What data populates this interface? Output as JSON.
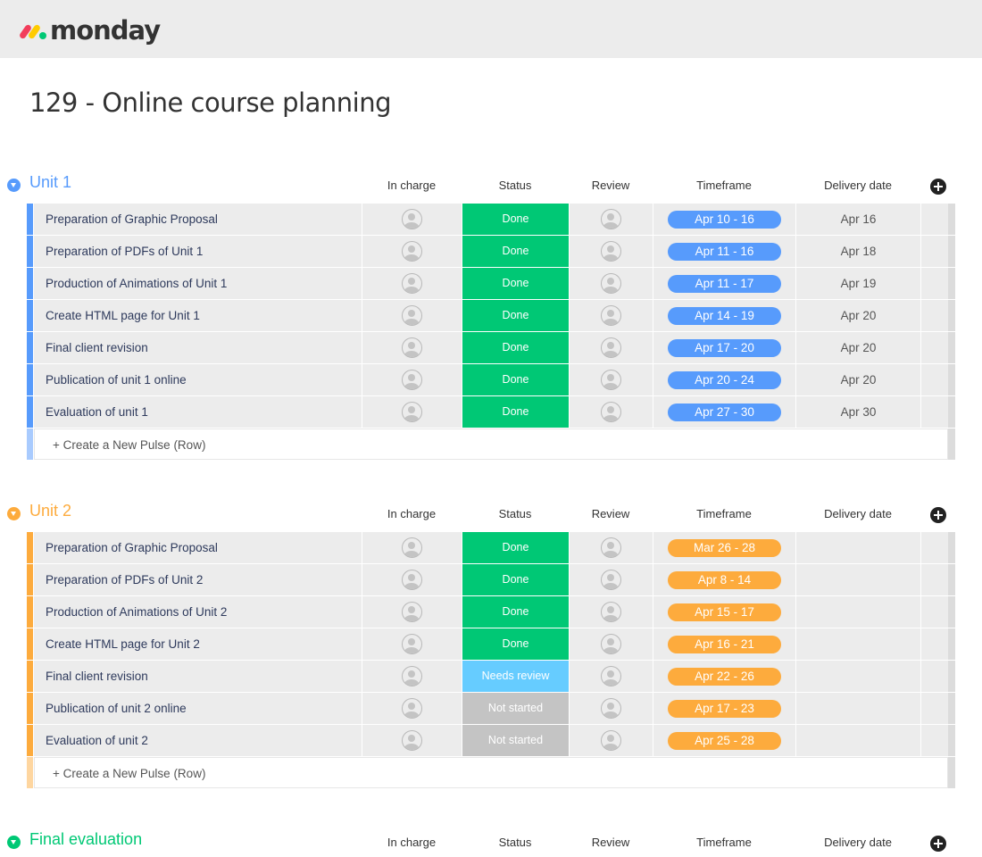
{
  "app": {
    "logo_text": "monday"
  },
  "board": {
    "title": "129 - Online course planning"
  },
  "columns": [
    "In charge",
    "Status",
    "Review",
    "Timeframe",
    "Delivery date"
  ],
  "colors": {
    "done": "#00c875",
    "needs_review": "#66ccff",
    "not_started": "#c4c4c4",
    "unit1": "#579bfc",
    "unit1_light": "#a9cbfe",
    "unit2": "#fdab3d",
    "unit2_light": "#fed6a0",
    "final": "#00c875"
  },
  "new_row_label": "+ Create a New Pulse (Row)",
  "groups": [
    {
      "name": "Unit 1",
      "color": "#579bfc",
      "light": "#a9cbfe",
      "rows": [
        {
          "name": "Preparation of Graphic Proposal",
          "status": "Done",
          "status_color": "#00c875",
          "timeframe": "Apr 10 - 16",
          "delivery": "Apr 16"
        },
        {
          "name": "Preparation of PDFs of Unit 1",
          "status": "Done",
          "status_color": "#00c875",
          "timeframe": "Apr 11 - 16",
          "delivery": "Apr 18"
        },
        {
          "name": "Production of Animations of Unit 1",
          "status": "Done",
          "status_color": "#00c875",
          "timeframe": "Apr 11 - 17",
          "delivery": "Apr 19"
        },
        {
          "name": "Create HTML page for Unit 1",
          "status": "Done",
          "status_color": "#00c875",
          "timeframe": "Apr 14 - 19",
          "delivery": "Apr 20"
        },
        {
          "name": "Final client revision",
          "status": "Done",
          "status_color": "#00c875",
          "timeframe": "Apr 17 - 20",
          "delivery": "Apr 20"
        },
        {
          "name": "Publication of unit 1 online",
          "status": "Done",
          "status_color": "#00c875",
          "timeframe": "Apr 20 - 24",
          "delivery": "Apr 20"
        },
        {
          "name": "Evaluation of unit 1",
          "status": "Done",
          "status_color": "#00c875",
          "timeframe": "Apr 27 - 30",
          "delivery": "Apr 30"
        }
      ]
    },
    {
      "name": "Unit 2",
      "color": "#fdab3d",
      "light": "#fed6a0",
      "rows": [
        {
          "name": "Preparation of Graphic Proposal",
          "status": "Done",
          "status_color": "#00c875",
          "timeframe": "Mar 26 - 28",
          "delivery": ""
        },
        {
          "name": "Preparation of PDFs of Unit 2",
          "status": "Done",
          "status_color": "#00c875",
          "timeframe": "Apr 8 - 14",
          "delivery": ""
        },
        {
          "name": "Production of Animations of Unit 2",
          "status": "Done",
          "status_color": "#00c875",
          "timeframe": "Apr 15 - 17",
          "delivery": ""
        },
        {
          "name": "Create HTML page for Unit 2",
          "status": "Done",
          "status_color": "#00c875",
          "timeframe": "Apr 16 - 21",
          "delivery": ""
        },
        {
          "name": "Final client revision",
          "status": "Needs review",
          "status_color": "#66ccff",
          "timeframe": "Apr 22 - 26",
          "delivery": ""
        },
        {
          "name": "Publication of unit 2 online",
          "status": "Not started",
          "status_color": "#c4c4c4",
          "timeframe": "Apr 17 - 23",
          "delivery": ""
        },
        {
          "name": "Evaluation of unit 2",
          "status": "Not started",
          "status_color": "#c4c4c4",
          "timeframe": "Apr 25 - 28",
          "delivery": ""
        }
      ]
    },
    {
      "name": "Final evaluation",
      "color": "#00c875",
      "light": "#80e3ba",
      "rows": []
    }
  ]
}
